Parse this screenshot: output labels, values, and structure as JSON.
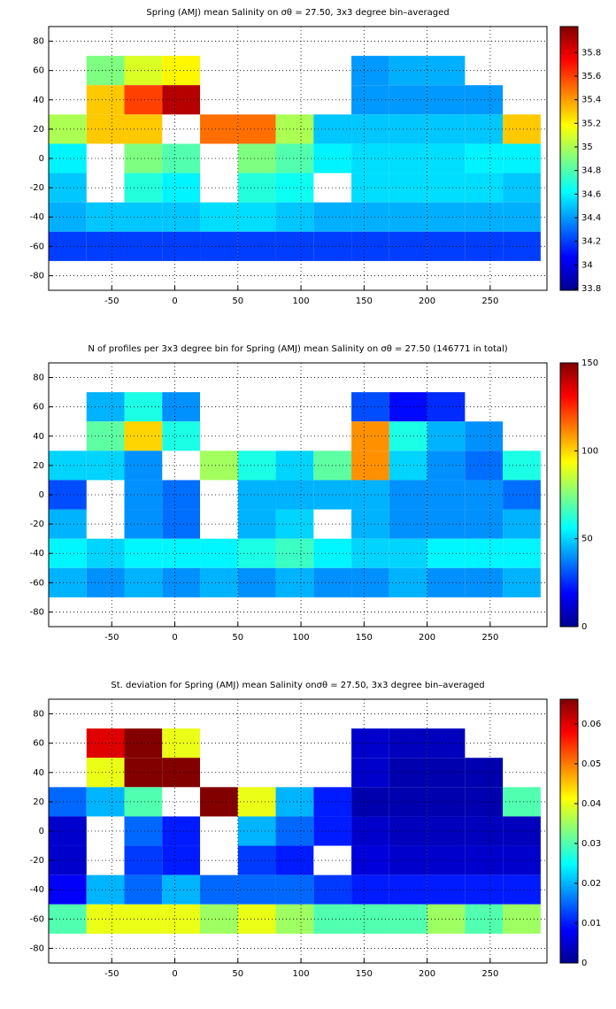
{
  "chart_data": [
    {
      "type": "heatmap",
      "colormap": "jet",
      "grid": true,
      "title": "Spring (AMJ) mean Salinity on σθ = 27.50, 3x3 degree bin–averaged",
      "x": [
        -85,
        -55,
        -25,
        5,
        35,
        65,
        95,
        125,
        155,
        185,
        215,
        245,
        275
      ],
      "y": [
        80,
        60,
        40,
        20,
        0,
        -20,
        -40,
        -60,
        -80
      ],
      "z": [
        [
          null,
          null,
          null,
          null,
          null,
          null,
          null,
          null,
          null,
          null,
          null,
          null,
          null
        ],
        [
          null,
          34.9,
          35.1,
          35.2,
          null,
          null,
          null,
          null,
          34.4,
          34.45,
          34.45,
          null,
          null
        ],
        [
          null,
          35.3,
          35.6,
          35.9,
          null,
          null,
          null,
          null,
          34.4,
          34.4,
          34.4,
          34.4,
          null
        ],
        [
          35.0,
          35.3,
          35.3,
          null,
          35.5,
          35.5,
          35.0,
          34.5,
          34.5,
          34.5,
          34.5,
          34.5,
          35.3
        ],
        [
          34.6,
          null,
          34.9,
          34.8,
          null,
          34.9,
          34.8,
          34.6,
          34.55,
          34.55,
          34.55,
          34.6,
          34.6
        ],
        [
          34.5,
          null,
          34.7,
          34.6,
          null,
          34.7,
          34.65,
          null,
          34.55,
          34.55,
          34.55,
          34.55,
          34.5
        ],
        [
          34.45,
          34.5,
          34.5,
          34.5,
          34.55,
          34.55,
          34.5,
          34.45,
          34.45,
          34.45,
          34.45,
          34.45,
          34.45
        ],
        [
          34.2,
          34.2,
          34.2,
          34.2,
          34.2,
          34.2,
          34.2,
          34.2,
          34.2,
          34.2,
          34.2,
          34.2,
          34.2
        ],
        [
          null,
          null,
          null,
          null,
          null,
          null,
          null,
          null,
          null,
          null,
          null,
          null,
          null
        ]
      ],
      "xlim": [
        -100,
        295
      ],
      "ylim": [
        -90,
        90
      ],
      "xticks": [
        -50,
        0,
        50,
        100,
        150,
        200,
        250
      ],
      "yticks": [
        -80,
        -60,
        -40,
        -20,
        0,
        20,
        40,
        60,
        80
      ],
      "clim": [
        33.785,
        36.02
      ],
      "cticks": [
        33.8,
        34,
        34.2,
        34.4,
        34.6,
        34.8,
        35,
        35.2,
        35.4,
        35.6,
        35.8
      ]
    },
    {
      "type": "heatmap",
      "colormap": "jet",
      "grid": true,
      "title": "N of profiles per 3x3 degree bin for Spring (AMJ) mean Salinity on σθ = 27.50 (146771 in total)",
      "x": [
        -85,
        -55,
        -25,
        5,
        35,
        65,
        95,
        125,
        155,
        185,
        215,
        245,
        275
      ],
      "y": [
        80,
        60,
        40,
        20,
        0,
        -20,
        -40,
        -60,
        -80
      ],
      "z": [
        [
          null,
          null,
          null,
          null,
          null,
          null,
          null,
          null,
          null,
          null,
          null,
          null,
          null
        ],
        [
          null,
          45,
          60,
          40,
          null,
          null,
          null,
          null,
          30,
          20,
          25,
          null,
          null
        ],
        [
          null,
          70,
          100,
          60,
          null,
          null,
          null,
          null,
          110,
          60,
          45,
          40,
          null
        ],
        [
          50,
          50,
          40,
          null,
          80,
          60,
          50,
          70,
          110,
          50,
          40,
          35,
          60
        ],
        [
          30,
          null,
          40,
          35,
          null,
          45,
          45,
          45,
          45,
          40,
          40,
          40,
          35
        ],
        [
          45,
          null,
          40,
          35,
          null,
          45,
          50,
          null,
          45,
          40,
          40,
          40,
          45
        ],
        [
          55,
          50,
          55,
          55,
          55,
          60,
          65,
          55,
          50,
          50,
          55,
          55,
          55
        ],
        [
          45,
          40,
          45,
          40,
          45,
          40,
          45,
          40,
          40,
          45,
          40,
          40,
          45
        ],
        [
          null,
          null,
          null,
          null,
          null,
          null,
          null,
          null,
          null,
          null,
          null,
          null,
          null
        ]
      ],
      "xlim": [
        -100,
        295
      ],
      "ylim": [
        -90,
        90
      ],
      "xticks": [
        -50,
        0,
        50,
        100,
        150,
        200,
        250
      ],
      "yticks": [
        -80,
        -60,
        -40,
        -20,
        0,
        20,
        40,
        60,
        80
      ],
      "clim": [
        0,
        150
      ],
      "cticks": [
        0,
        50,
        100,
        150
      ]
    },
    {
      "type": "heatmap",
      "colormap": "jet",
      "grid": true,
      "title": "St. deviation for Spring (AMJ) mean Salinity onσθ = 27.50, 3x3 degree bin–averaged",
      "x": [
        -85,
        -55,
        -25,
        5,
        35,
        65,
        95,
        125,
        155,
        185,
        215,
        245,
        275
      ],
      "y": [
        80,
        60,
        40,
        20,
        0,
        -20,
        -40,
        -60,
        -80
      ],
      "z": [
        [
          null,
          null,
          null,
          null,
          null,
          null,
          null,
          null,
          null,
          null,
          null,
          null,
          null
        ],
        [
          null,
          0.06,
          0.066,
          0.04,
          null,
          null,
          null,
          null,
          0.005,
          0.004,
          0.004,
          null,
          null
        ],
        [
          null,
          0.04,
          0.066,
          0.066,
          null,
          null,
          null,
          null,
          0.005,
          0.003,
          0.003,
          0.003,
          null
        ],
        [
          0.015,
          0.02,
          0.03,
          null,
          0.066,
          0.04,
          0.02,
          0.01,
          0.003,
          0.003,
          0.003,
          0.003,
          0.03
        ],
        [
          0.005,
          null,
          0.015,
          0.01,
          null,
          0.02,
          0.015,
          0.01,
          0.005,
          0.004,
          0.004,
          0.004,
          0.004
        ],
        [
          0.005,
          null,
          0.012,
          0.01,
          null,
          0.012,
          0.01,
          null,
          0.006,
          0.005,
          0.005,
          0.005,
          0.005
        ],
        [
          0.008,
          0.02,
          0.015,
          0.02,
          0.015,
          0.015,
          0.015,
          0.012,
          0.01,
          0.01,
          0.01,
          0.01,
          0.01
        ],
        [
          0.03,
          0.04,
          0.04,
          0.04,
          0.035,
          0.04,
          0.035,
          0.03,
          0.03,
          0.03,
          0.035,
          0.03,
          0.035
        ],
        [
          null,
          null,
          null,
          null,
          null,
          null,
          null,
          null,
          null,
          null,
          null,
          null,
          null
        ]
      ],
      "xlim": [
        -100,
        295
      ],
      "ylim": [
        -90,
        90
      ],
      "xticks": [
        -50,
        0,
        50,
        100,
        150,
        200,
        250
      ],
      "yticks": [
        -80,
        -60,
        -40,
        -20,
        0,
        20,
        40,
        60,
        80
      ],
      "clim": [
        0,
        0.0662
      ],
      "cticks": [
        0,
        0.01,
        0.02,
        0.03,
        0.04,
        0.05,
        0.06
      ]
    }
  ]
}
